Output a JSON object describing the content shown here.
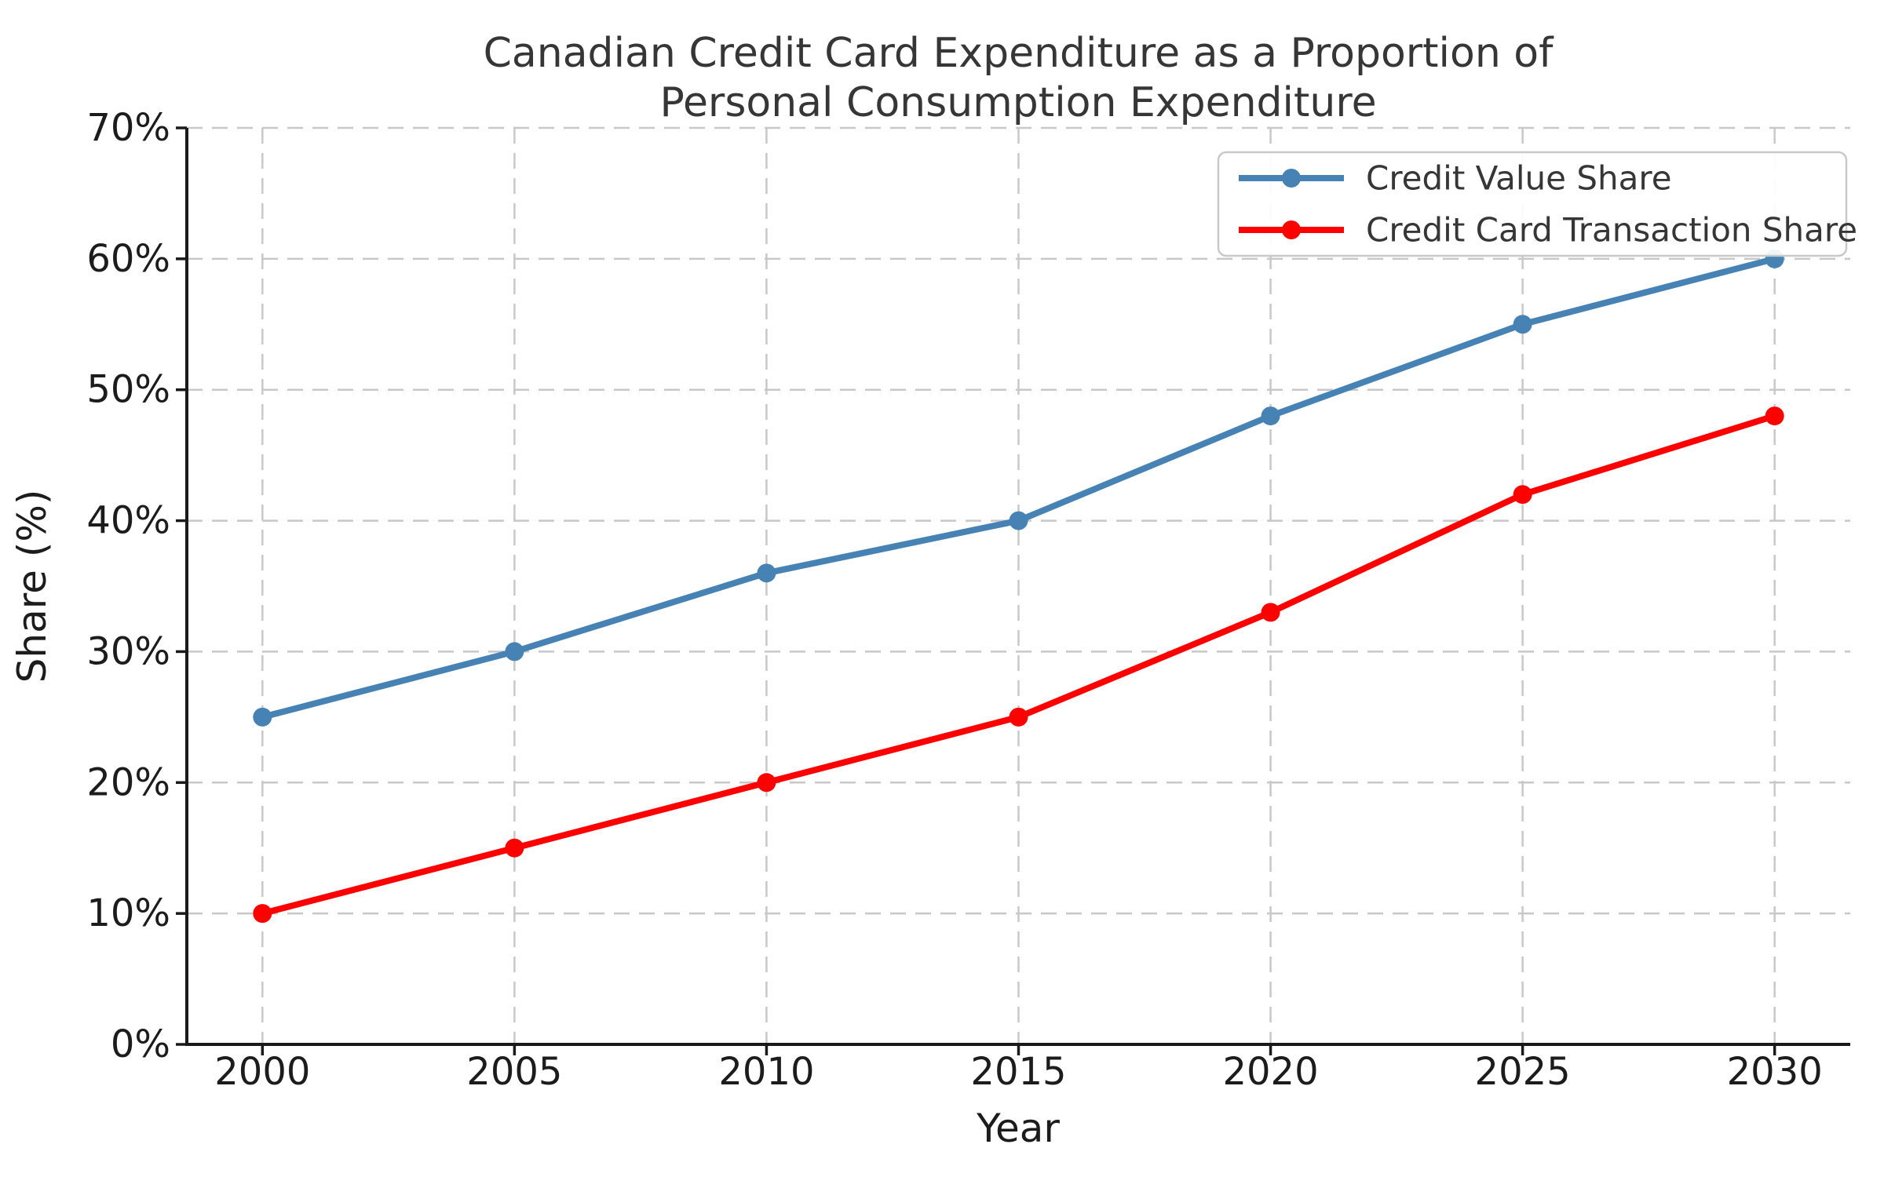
{
  "chart_data": {
    "type": "line",
    "title": "Canadian Credit Card Expenditure as a Proportion of Personal Consumption Expenditure",
    "title_lines": [
      "Canadian Credit Card Expenditure as a Proportion of",
      "Personal Consumption Expenditure"
    ],
    "xlabel": "Year",
    "ylabel": "Share (%)",
    "x": [
      2000,
      2005,
      2010,
      2015,
      2020,
      2025,
      2030
    ],
    "x_tick_labels": [
      "2000",
      "2005",
      "2010",
      "2015",
      "2020",
      "2025",
      "2030"
    ],
    "y_ticks": [
      0,
      10,
      20,
      30,
      40,
      50,
      60,
      70
    ],
    "y_tick_labels": [
      "0%",
      "10%",
      "20%",
      "30%",
      "40%",
      "50%",
      "60%",
      "70%"
    ],
    "xlim": [
      1998.5,
      2031.5
    ],
    "ylim": [
      0,
      70
    ],
    "grid": true,
    "grid_style": "dashed",
    "legend_position": "upper right",
    "series": [
      {
        "name": "Credit Value Share",
        "color": "#4682B4",
        "marker": "circle",
        "values": [
          25,
          30,
          36,
          40,
          48,
          55,
          60
        ]
      },
      {
        "name": "Credit Card Transaction Share",
        "color": "#FF0000",
        "marker": "circle",
        "values": [
          10,
          15,
          20,
          25,
          33,
          42,
          48
        ]
      }
    ]
  },
  "colors": {
    "background": "#FFFFFF",
    "grid": "#C8C8C8",
    "spine": "#1A1A1A",
    "tick": "#1A1A1A",
    "title_text": "#363636",
    "tick_text": "#1C1C1C",
    "legend_border": "#C9C9C9",
    "legend_fill": "#FFFFFF"
  }
}
